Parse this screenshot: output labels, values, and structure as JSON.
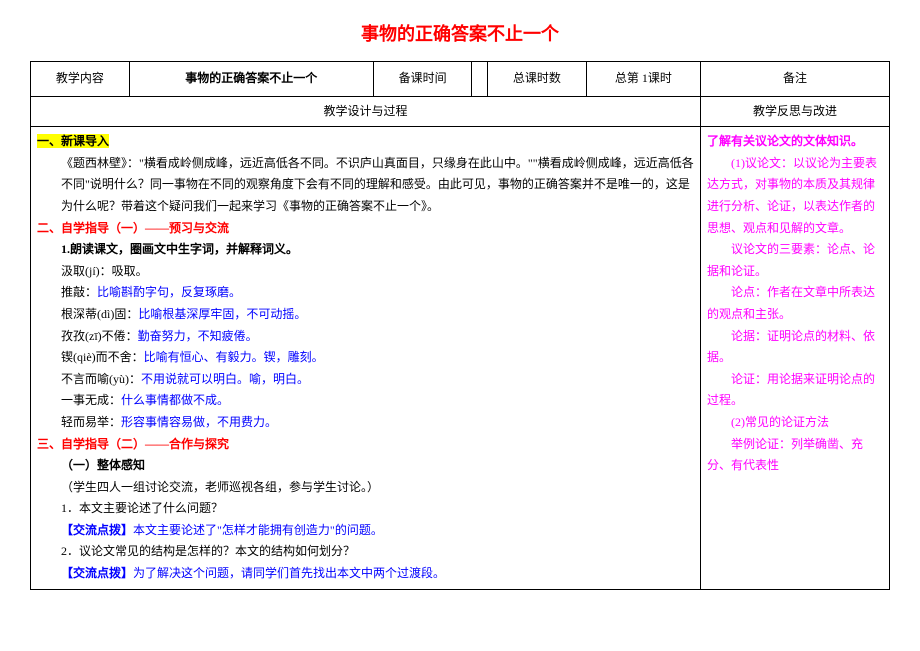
{
  "title": "事物的正确答案不止一个",
  "header": {
    "col1": "教学内容",
    "col2": "事物的正确答案不止一个",
    "col3": "备课时间",
    "col4": "",
    "col5": "总课时数",
    "col6": "总第 1课时",
    "col7": "备注"
  },
  "section_headers": {
    "left": "教学设计与过程",
    "right": "教学反思与改进"
  },
  "content": {
    "s1_title": "一、新课导入",
    "s1_p1": "《题西林壁》：\"横看成岭侧成峰，远近高低各不同。不识庐山真面目，只缘身在此山中。\"\"横看成岭侧成峰，远近高低各不同\"说明什么？同一事物在不同的观察角度下会有不同的理解和感受。由此可见，事物的正确答案并不是唯一的，这是为什么呢？带着这个疑问我们一起来学习《事物的正确答案不止一个》。",
    "s2_title": "二、自学指导（一）",
    "s2_title_suffix": "——预习与交流",
    "s2_h1": "1.朗读课文，圈画文中生字词，并解释词义。",
    "s2_l1a": "汲取(jí)：吸取。",
    "s2_l2a": "推敲：",
    "s2_l2b": "比喻斟酌字句，反复琢磨。",
    "s2_l3a": "根深蒂(dì)固：",
    "s2_l3b": "比喻根基深厚牢固，不可动摇。",
    "s2_l4a": "孜孜(zī)不倦：",
    "s2_l4b": "勤奋努力，不知疲倦。",
    "s2_l5a": "锲(qiè)而不舍：",
    "s2_l5b": "比喻有恒心、有毅力。锲，雕刻。",
    "s2_l6a": "不言而喻(yù)：",
    "s2_l6b": "不用说就可以明白。喻，明白。",
    "s2_l7a": "一事无成：",
    "s2_l7b": "什么事情都做不成。",
    "s2_l8a": "轻而易举：",
    "s2_l8b": "形容事情容易做，不用费力。",
    "s3_title": "三、自学指导（二）",
    "s3_title_suffix": "——合作与探究",
    "s3_h1": "（一）整体感知",
    "s3_p1": "（学生四人一组讨论交流，老师巡视各组，参与学生讨论。）",
    "s3_q1": "1．本文主要论述了什么问题？",
    "s3_a1_label": "【交流点拨】",
    "s3_a1": "本文主要论述了\"怎样才能拥有创造力\"的问题。",
    "s3_q2": "2．议论文常见的结构是怎样的？本文的结构如何划分？",
    "s3_a2_label": "【交流点拨】",
    "s3_a2": "为了解决这个问题，请同学们首先找出本文中两个过渡段。"
  },
  "side": {
    "h1": "了解有关议论文的文体知识。",
    "p1": "(1)议论文：以议论为主要表达方式，对事物的本质及其规律进行分析、论证，以表达作者的思想、观点和见解的文章。",
    "p2": "议论文的三要素：论点、论据和论证。",
    "p3": "论点：作者在文章中所表达的观点和主张。",
    "p4": "论据：证明论点的材料、依据。",
    "p5": "论证：用论据来证明论点的过程。",
    "p6": "(2)常见的论证方法",
    "p7": "举例论证：列举确凿、充分、有代表性"
  },
  "colors": {
    "title": "#ff0000",
    "red": "#ff0000",
    "blue": "#0000ff",
    "magenta": "#ff00ff",
    "highlight": "#ffff00",
    "border": "#000000"
  }
}
